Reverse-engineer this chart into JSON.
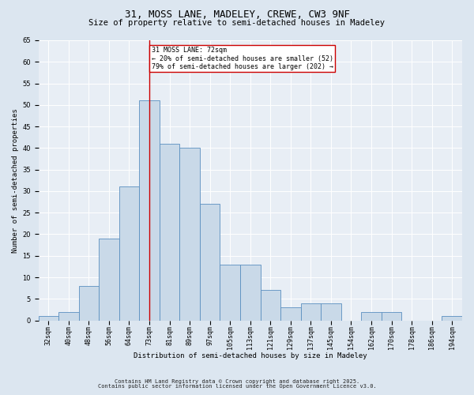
{
  "title1": "31, MOSS LANE, MADELEY, CREWE, CW3 9NF",
  "title2": "Size of property relative to semi-detached houses in Madeley",
  "xlabel": "Distribution of semi-detached houses by size in Madeley",
  "ylabel": "Number of semi-detached properties",
  "footer1": "Contains HM Land Registry data © Crown copyright and database right 2025.",
  "footer2": "Contains public sector information licensed under the Open Government Licence v3.0.",
  "bar_labels": [
    "32sqm",
    "40sqm",
    "48sqm",
    "56sqm",
    "64sqm",
    "73sqm",
    "81sqm",
    "89sqm",
    "97sqm",
    "105sqm",
    "113sqm",
    "121sqm",
    "129sqm",
    "137sqm",
    "145sqm",
    "154sqm",
    "162sqm",
    "170sqm",
    "178sqm",
    "186sqm",
    "194sqm"
  ],
  "bar_values": [
    1,
    2,
    8,
    19,
    31,
    51,
    41,
    40,
    27,
    13,
    13,
    7,
    3,
    4,
    4,
    0,
    2,
    2,
    0,
    0,
    1
  ],
  "bar_color": "#c9d9e8",
  "bar_edge_color": "#5a8fc0",
  "vline_index": 5,
  "vline_color": "#cc0000",
  "annotation_text": "31 MOSS LANE: 72sqm\n← 20% of semi-detached houses are smaller (52)\n79% of semi-detached houses are larger (202) →",
  "annotation_box_color": "#cc0000",
  "ylim": [
    0,
    65
  ],
  "yticks": [
    0,
    5,
    10,
    15,
    20,
    25,
    30,
    35,
    40,
    45,
    50,
    55,
    60,
    65
  ],
  "bg_color": "#dce6f0",
  "plot_bg_color": "#e8eef5",
  "title_fontsize": 9,
  "subtitle_fontsize": 7.5,
  "axis_label_fontsize": 6.5,
  "tick_fontsize": 6,
  "footer_fontsize": 5,
  "annotation_fontsize": 6
}
